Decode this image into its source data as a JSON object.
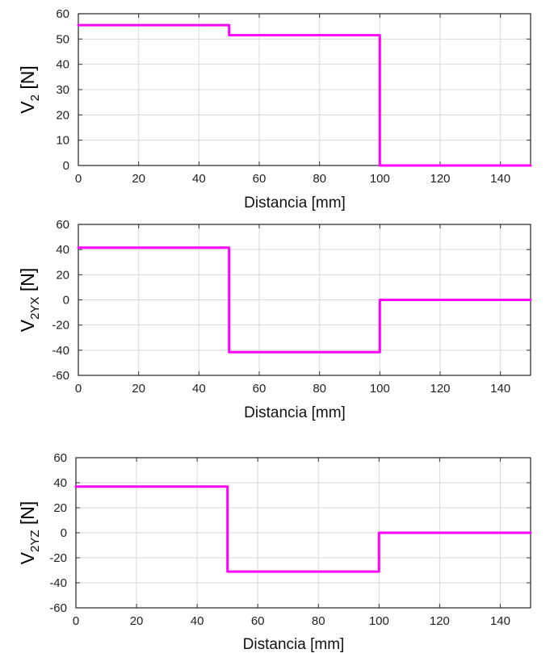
{
  "chart_data": [
    {
      "type": "line",
      "ylabel": {
        "prefix": "V",
        "sub": "2",
        "suffix": " [N]"
      },
      "xlabel": "Distancia [mm]",
      "xlim": [
        0,
        150
      ],
      "ylim": [
        0,
        60
      ],
      "xticks": [
        0,
        20,
        40,
        60,
        80,
        100,
        120,
        140
      ],
      "yticks": [
        0,
        10,
        20,
        30,
        40,
        50,
        60
      ],
      "grid": true,
      "color": "#ff00ff",
      "series": [
        {
          "x": [
            0,
            50,
            50,
            100,
            100,
            150
          ],
          "y": [
            55.5,
            55.5,
            51.5,
            51.5,
            0,
            0
          ]
        }
      ]
    },
    {
      "type": "line",
      "ylabel": {
        "prefix": "V",
        "sub": "2YX",
        "suffix": " [N]"
      },
      "xlabel": "Distancia [mm]",
      "xlim": [
        0,
        150
      ],
      "ylim": [
        -60,
        60
      ],
      "xticks": [
        0,
        20,
        40,
        60,
        80,
        100,
        120,
        140
      ],
      "yticks": [
        -60,
        -40,
        -20,
        0,
        20,
        40,
        60
      ],
      "grid": true,
      "color": "#ff00ff",
      "series": [
        {
          "x": [
            0,
            50,
            50,
            100,
            100,
            150
          ],
          "y": [
            41.5,
            41.5,
            -41.5,
            -41.5,
            0,
            0
          ]
        }
      ]
    },
    {
      "type": "line",
      "ylabel": {
        "prefix": "V",
        "sub": "2YZ",
        "suffix": " [N]"
      },
      "xlabel": "Distancia [mm]",
      "xlim": [
        0,
        150
      ],
      "ylim": [
        -60,
        60
      ],
      "xticks": [
        0,
        20,
        40,
        60,
        80,
        100,
        120,
        140
      ],
      "yticks": [
        -60,
        -40,
        -20,
        0,
        20,
        40,
        60
      ],
      "grid": true,
      "color": "#ff00ff",
      "series": [
        {
          "x": [
            0,
            50,
            50,
            100,
            100,
            150
          ],
          "y": [
            37,
            37,
            -31,
            -31,
            0,
            0
          ]
        }
      ]
    }
  ]
}
